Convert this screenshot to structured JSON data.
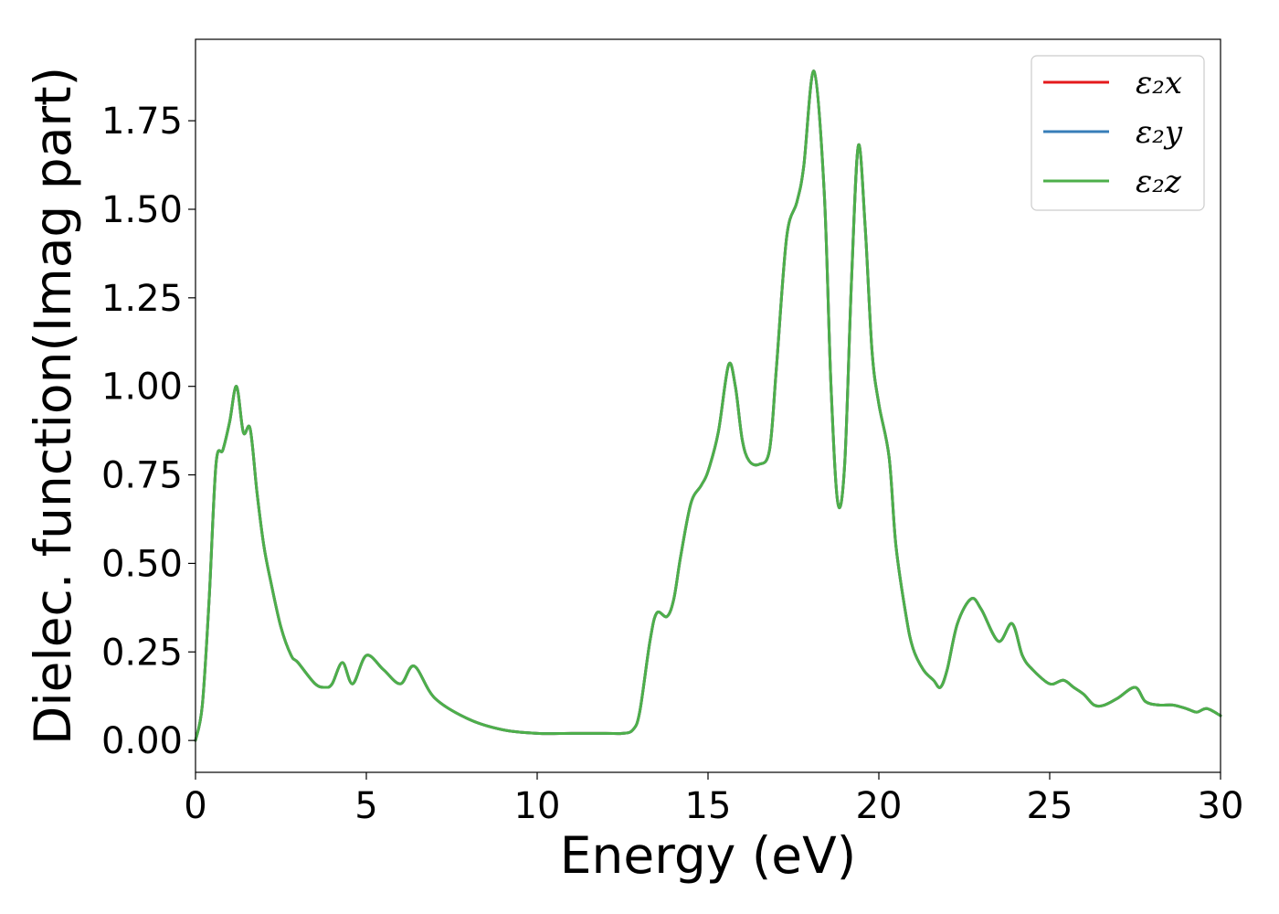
{
  "chart_data": {
    "type": "line",
    "xlabel": "Energy (eV)",
    "ylabel": "Dielec. function(Imag part)",
    "xlim": [
      0,
      30
    ],
    "ylim": [
      -0.09,
      1.98
    ],
    "xticks": [
      0,
      5,
      10,
      15,
      20,
      25,
      30
    ],
    "xtick_labels": [
      "0",
      "5",
      "10",
      "15",
      "20",
      "25",
      "30"
    ],
    "yticks": [
      0.0,
      0.25,
      0.5,
      0.75,
      1.0,
      1.25,
      1.5,
      1.75
    ],
    "ytick_labels": [
      "0.00",
      "0.25",
      "0.50",
      "0.75",
      "1.00",
      "1.25",
      "1.50",
      "1.75"
    ],
    "grid": false,
    "legend_position": "top-right",
    "series": [
      {
        "name": "ε₂x",
        "color": "#e41a1c",
        "x": [
          0,
          0.2,
          0.4,
          0.6,
          0.8,
          1.0,
          1.2,
          1.4,
          1.6,
          1.8,
          2.0,
          2.2,
          2.5,
          2.8,
          3.0,
          3.5,
          3.8,
          4.0,
          4.3,
          4.6,
          5.0,
          5.5,
          6.0,
          6.4,
          7.0,
          8.0,
          9.0,
          10.0,
          11.0,
          12.0,
          12.5,
          12.8,
          13.0,
          13.3,
          13.5,
          13.8,
          14.0,
          14.2,
          14.5,
          14.8,
          15.0,
          15.3,
          15.6,
          15.8,
          16.0,
          16.2,
          16.5,
          16.8,
          17.0,
          17.3,
          17.6,
          17.8,
          18.1,
          18.4,
          18.6,
          18.8,
          19.0,
          19.2,
          19.4,
          19.6,
          19.8,
          20.0,
          20.3,
          20.5,
          20.8,
          21.0,
          21.3,
          21.6,
          21.8,
          22.0,
          22.3,
          22.7,
          23.0,
          23.5,
          23.9,
          24.2,
          24.5,
          25.0,
          25.4,
          25.7,
          26.0,
          26.3,
          26.6,
          27.0,
          27.5,
          27.8,
          28.2,
          28.6,
          29.0,
          29.3,
          29.6,
          30.0
        ],
        "values": [
          0.0,
          0.1,
          0.4,
          0.78,
          0.82,
          0.9,
          1.0,
          0.87,
          0.88,
          0.7,
          0.55,
          0.45,
          0.32,
          0.24,
          0.22,
          0.16,
          0.15,
          0.16,
          0.22,
          0.16,
          0.24,
          0.2,
          0.16,
          0.21,
          0.12,
          0.06,
          0.03,
          0.02,
          0.02,
          0.02,
          0.02,
          0.03,
          0.08,
          0.28,
          0.36,
          0.35,
          0.4,
          0.52,
          0.67,
          0.72,
          0.76,
          0.87,
          1.06,
          1.0,
          0.85,
          0.79,
          0.78,
          0.82,
          1.05,
          1.42,
          1.52,
          1.62,
          1.89,
          1.55,
          1.0,
          0.67,
          0.78,
          1.3,
          1.68,
          1.45,
          1.1,
          0.95,
          0.8,
          0.55,
          0.35,
          0.26,
          0.2,
          0.17,
          0.15,
          0.2,
          0.33,
          0.4,
          0.37,
          0.28,
          0.33,
          0.24,
          0.2,
          0.16,
          0.17,
          0.15,
          0.13,
          0.1,
          0.1,
          0.12,
          0.15,
          0.11,
          0.1,
          0.1,
          0.09,
          0.08,
          0.09,
          0.07
        ]
      },
      {
        "name": "ε₂y",
        "color": "#377eb8",
        "x": [
          0,
          0.2,
          0.4,
          0.6,
          0.8,
          1.0,
          1.2,
          1.4,
          1.6,
          1.8,
          2.0,
          2.2,
          2.5,
          2.8,
          3.0,
          3.5,
          3.8,
          4.0,
          4.3,
          4.6,
          5.0,
          5.5,
          6.0,
          6.4,
          7.0,
          8.0,
          9.0,
          10.0,
          11.0,
          12.0,
          12.5,
          12.8,
          13.0,
          13.3,
          13.5,
          13.8,
          14.0,
          14.2,
          14.5,
          14.8,
          15.0,
          15.3,
          15.6,
          15.8,
          16.0,
          16.2,
          16.5,
          16.8,
          17.0,
          17.3,
          17.6,
          17.8,
          18.1,
          18.4,
          18.6,
          18.8,
          19.0,
          19.2,
          19.4,
          19.6,
          19.8,
          20.0,
          20.3,
          20.5,
          20.8,
          21.0,
          21.3,
          21.6,
          21.8,
          22.0,
          22.3,
          22.7,
          23.0,
          23.5,
          23.9,
          24.2,
          24.5,
          25.0,
          25.4,
          25.7,
          26.0,
          26.3,
          26.6,
          27.0,
          27.5,
          27.8,
          28.2,
          28.6,
          29.0,
          29.3,
          29.6,
          30.0
        ],
        "values": [
          0.0,
          0.1,
          0.4,
          0.78,
          0.82,
          0.9,
          1.0,
          0.87,
          0.88,
          0.7,
          0.55,
          0.45,
          0.32,
          0.24,
          0.22,
          0.16,
          0.15,
          0.16,
          0.22,
          0.16,
          0.24,
          0.2,
          0.16,
          0.21,
          0.12,
          0.06,
          0.03,
          0.02,
          0.02,
          0.02,
          0.02,
          0.03,
          0.08,
          0.28,
          0.36,
          0.35,
          0.4,
          0.52,
          0.67,
          0.72,
          0.76,
          0.87,
          1.06,
          1.0,
          0.85,
          0.79,
          0.78,
          0.82,
          1.05,
          1.42,
          1.52,
          1.62,
          1.89,
          1.55,
          1.0,
          0.67,
          0.78,
          1.3,
          1.68,
          1.45,
          1.1,
          0.95,
          0.8,
          0.55,
          0.35,
          0.26,
          0.2,
          0.17,
          0.15,
          0.2,
          0.33,
          0.4,
          0.37,
          0.28,
          0.33,
          0.24,
          0.2,
          0.16,
          0.17,
          0.15,
          0.13,
          0.1,
          0.1,
          0.12,
          0.15,
          0.11,
          0.1,
          0.1,
          0.09,
          0.08,
          0.09,
          0.07
        ]
      },
      {
        "name": "ε₂z",
        "color": "#4daf4a",
        "x": [
          0,
          0.2,
          0.4,
          0.6,
          0.8,
          1.0,
          1.2,
          1.4,
          1.6,
          1.8,
          2.0,
          2.2,
          2.5,
          2.8,
          3.0,
          3.5,
          3.8,
          4.0,
          4.3,
          4.6,
          5.0,
          5.5,
          6.0,
          6.4,
          7.0,
          8.0,
          9.0,
          10.0,
          11.0,
          12.0,
          12.5,
          12.8,
          13.0,
          13.3,
          13.5,
          13.8,
          14.0,
          14.2,
          14.5,
          14.8,
          15.0,
          15.3,
          15.6,
          15.8,
          16.0,
          16.2,
          16.5,
          16.8,
          17.0,
          17.3,
          17.6,
          17.8,
          18.1,
          18.4,
          18.6,
          18.8,
          19.0,
          19.2,
          19.4,
          19.6,
          19.8,
          20.0,
          20.3,
          20.5,
          20.8,
          21.0,
          21.3,
          21.6,
          21.8,
          22.0,
          22.3,
          22.7,
          23.0,
          23.5,
          23.9,
          24.2,
          24.5,
          25.0,
          25.4,
          25.7,
          26.0,
          26.3,
          26.6,
          27.0,
          27.5,
          27.8,
          28.2,
          28.6,
          29.0,
          29.3,
          29.6,
          30.0
        ],
        "values": [
          0.0,
          0.1,
          0.4,
          0.78,
          0.82,
          0.9,
          1.0,
          0.87,
          0.88,
          0.7,
          0.55,
          0.45,
          0.32,
          0.24,
          0.22,
          0.16,
          0.15,
          0.16,
          0.22,
          0.16,
          0.24,
          0.2,
          0.16,
          0.21,
          0.12,
          0.06,
          0.03,
          0.02,
          0.02,
          0.02,
          0.02,
          0.03,
          0.08,
          0.28,
          0.36,
          0.35,
          0.4,
          0.52,
          0.67,
          0.72,
          0.76,
          0.87,
          1.06,
          1.0,
          0.85,
          0.79,
          0.78,
          0.82,
          1.05,
          1.42,
          1.52,
          1.62,
          1.89,
          1.55,
          1.0,
          0.67,
          0.78,
          1.3,
          1.68,
          1.45,
          1.1,
          0.95,
          0.8,
          0.55,
          0.35,
          0.26,
          0.2,
          0.17,
          0.15,
          0.2,
          0.33,
          0.4,
          0.37,
          0.28,
          0.33,
          0.24,
          0.2,
          0.16,
          0.17,
          0.15,
          0.13,
          0.1,
          0.1,
          0.12,
          0.15,
          0.11,
          0.1,
          0.1,
          0.09,
          0.08,
          0.09,
          0.07
        ]
      }
    ]
  }
}
